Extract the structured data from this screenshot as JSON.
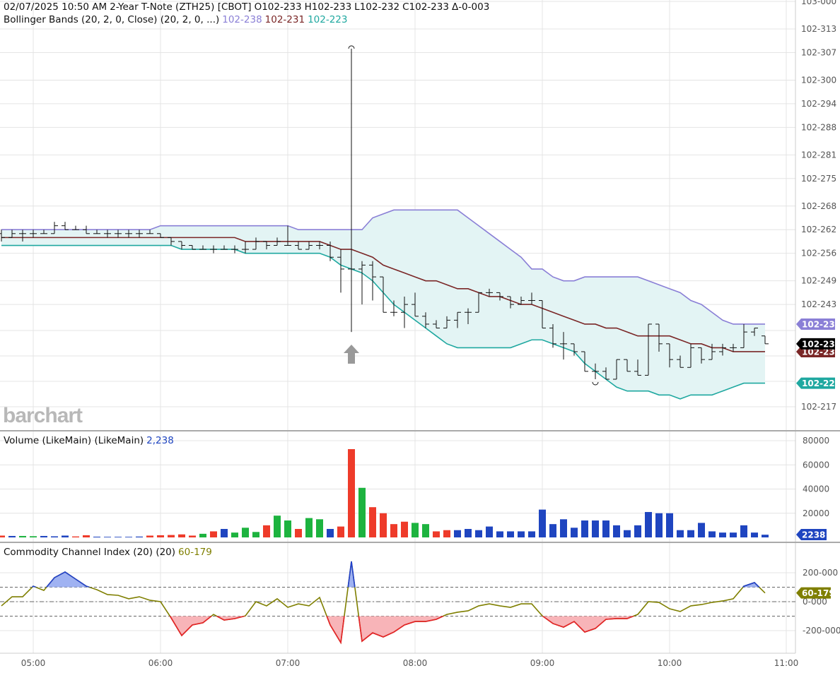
{
  "header": {
    "datetime": "02/07/2025 10:50 AM",
    "instrument": "2-Year T-Note (ZTH25) [CBOT]",
    "open": "O102-233",
    "high": "H102-233",
    "low": "L102-232",
    "close": "C102-233",
    "change": "Δ-0-003",
    "bb_label": "Bollinger Bands (20, 2, 0, Close)  (20, 2, 0, ...)",
    "bb_upper": "102-238",
    "bb_middle": "102-231",
    "bb_lower": "102-223"
  },
  "volume_header": {
    "label": "Volume (LikeMain)  (LikeMain)",
    "value": "2,238"
  },
  "cci_header": {
    "label": "Commodity Channel Index (20)  (20)",
    "value": "60-179"
  },
  "watermark": "barchart",
  "colors": {
    "bb_upper": "#8a7fd6",
    "bb_middle": "#7a2626",
    "bb_lower": "#1fa8a0",
    "bb_fill": "#e3f4f4",
    "vol_up": "#1db33f",
    "vol_down": "#ee3b2a",
    "vol_unch": "#1f45c0",
    "cci_line": "#7f7f00",
    "cci_over": "#2040d0",
    "cci_over_fill": "#9fb2f2",
    "cci_under": "#e8202a",
    "cci_under_fill": "#f8b4b8",
    "last_price": "#000000"
  },
  "chart_data": [
    {
      "type": "ohlc",
      "panel": "price",
      "bar_interval_min": 5,
      "first_bar": "04:45",
      "x_ticks": [
        "05:00",
        "06:00",
        "07:00",
        "08:00",
        "09:00",
        "10:00",
        "11:00"
      ],
      "y_ticks": [
        "103-000",
        "102-313",
        "102-307",
        "102-300",
        "102-294",
        "102-288",
        "102-281",
        "102-275",
        "102-268",
        "102-262",
        "102-256",
        "102-249",
        "102-243",
        "102-217"
      ],
      "ylim": [
        "102-217",
        "103-000"
      ],
      "last_price_tag": "102-233",
      "band_tags": {
        "upper": "102-238",
        "middle": "102-231",
        "lower": "102-223"
      },
      "bars": [
        "102-261 102-262 102-259 102-260",
        "102-260 102-262 102-260 102-261",
        "102-261 102-262 102-259 102-261",
        "102-261 102-262 102-260 102-261",
        "102-261 102-262 102-261 102-261",
        "102-261 102-264 102-261 102-263",
        "102-263 102-264 102-262 102-262",
        "102-262 102-263 102-262 102-262",
        "102-262 102-263 102-261 102-261",
        "102-261 102-262 102-261 102-261",
        "102-261 102-262 102-260 102-261",
        "102-261 102-262 102-260 102-261",
        "102-261 102-262 102-260 102-261",
        "102-261 102-262 102-260 102-261",
        "102-261 102-262 102-261 102-261",
        "102-261 102-261 102-260 102-260",
        "102-260 102-260 102-258 102-259",
        "102-259 102-259 102-257 102-258",
        "102-258 102-258 102-257 102-257",
        "102-257 102-258 102-257 102-257",
        "102-257 102-258 102-256 102-257",
        "102-257 102-258 102-257 102-257",
        "102-257 102-258 102-256 102-257",
        "102-257 102-259 102-256 102-257",
        "102-257 102-260 102-257 102-259",
        "102-259 102-259 102-257 102-258",
        "102-258 102-260 102-258 102-259",
        "102-258 102-263 102-258 102-258",
        "102-258 102-259 102-257 102-257",
        "102-257 102-259 102-257 102-258",
        "102-258 102-259 102-257 102-258",
        "102-258 102-259 102-254 102-255",
        "102-255 102-257 102-246 102-252",
        "102-252 102-308 102-236 102-252",
        "102-252 102-254 102-243 102-253",
        "102-253 102-254 102-244 102-250",
        "102-250 102-250 102-241 102-241",
        "102-241 102-244 102-240 102-241",
        "102-241 102-245 102-237 102-243",
        "102-243 102-246 102-240 102-240",
        "102-240 102-241 102-237 102-238",
        "102-238 102-239 102-237 102-237",
        "102-237 102-240 102-237 102-239",
        "102-239 102-241 102-237 102-241",
        "102-241 102-242 102-238 102-241",
        "102-241 102-246 102-241 102-246",
        "102-246 102-247 102-245 102-246",
        "102-246 102-246 102-244 102-245",
        "102-245 102-245 102-242 102-243",
        "102-243 102-245 102-243 102-244",
        "102-244 102-246 102-243 102-244",
        "102-244 102-244 102-237 102-237",
        "102-237 102-238 102-232 102-233",
        "102-233 102-236 102-229 102-233",
        "102-233 102-233 102-230 102-231",
        "102-231 102-231 102-226 102-226",
        "102-226 102-228 102-224 102-226",
        "102-226 102-227 102-224 102-224",
        "102-224 102-229 102-224 102-229",
        "102-229 102-229 102-226 102-226",
        "102-226 102-229 102-225 102-225",
        "102-225 102-238 102-225 102-238",
        "102-238 102-238 102-231 102-233",
        "102-233 102-233 102-227 102-229",
        "102-229 102-230 102-227 102-227",
        "102-227 102-233 102-227 102-232",
        "102-232 102-232 102-228 102-229",
        "102-229 102-233 102-229 102-231",
        "102-231 102-233 102-230 102-232",
        "102-232 102-233 102-231 102-232",
        "102-232 102-238 102-232 102-236",
        "102-236 102-237 102-235 102-237",
        "102-235 102-235 102-233 102-233"
      ],
      "bb_upper": [
        "102-262",
        "102-262",
        "102-262",
        "102-262",
        "102-262",
        "102-262",
        "102-262",
        "102-262",
        "102-262",
        "102-262",
        "102-262",
        "102-262",
        "102-262",
        "102-262",
        "102-262",
        "102-263",
        "102-263",
        "102-263",
        "102-263",
        "102-263",
        "102-263",
        "102-263",
        "102-263",
        "102-263",
        "102-263",
        "102-263",
        "102-263",
        "102-263",
        "102-262",
        "102-262",
        "102-262",
        "102-262",
        "102-262",
        "102-262",
        "102-262",
        "102-265",
        "102-266",
        "102-267",
        "102-267",
        "102-267",
        "102-267",
        "102-267",
        "102-267",
        "102-267",
        "102-265",
        "102-263",
        "102-261",
        "102-259",
        "102-257",
        "102-255",
        "102-252",
        "102-252",
        "102-250",
        "102-249",
        "102-249",
        "102-250",
        "102-250",
        "102-250",
        "102-250",
        "102-250",
        "102-250",
        "102-249",
        "102-248",
        "102-247",
        "102-246",
        "102-244",
        "102-243",
        "102-241",
        "102-239",
        "102-238",
        "102-238",
        "102-238",
        "102-238"
      ],
      "bb_middle": [
        "102-260",
        "102-260",
        "102-260",
        "102-260",
        "102-260",
        "102-260",
        "102-260",
        "102-260",
        "102-260",
        "102-260",
        "102-260",
        "102-260",
        "102-260",
        "102-260",
        "102-260",
        "102-260",
        "102-260",
        "102-260",
        "102-260",
        "102-260",
        "102-260",
        "102-260",
        "102-260",
        "102-259",
        "102-259",
        "102-259",
        "102-259",
        "102-259",
        "102-259",
        "102-259",
        "102-259",
        "102-258",
        "102-257",
        "102-257",
        "102-256",
        "102-255",
        "102-253",
        "102-252",
        "102-251",
        "102-250",
        "102-249",
        "102-249",
        "102-248",
        "102-247",
        "102-247",
        "102-246",
        "102-245",
        "102-245",
        "102-244",
        "102-243",
        "102-243",
        "102-242",
        "102-241",
        "102-240",
        "102-239",
        "102-238",
        "102-238",
        "102-237",
        "102-237",
        "102-236",
        "102-235",
        "102-235",
        "102-235",
        "102-235",
        "102-234",
        "102-233",
        "102-233",
        "102-232",
        "102-232",
        "102-231",
        "102-231",
        "102-231",
        "102-231"
      ],
      "bb_lower": [
        "102-258",
        "102-258",
        "102-258",
        "102-258",
        "102-258",
        "102-258",
        "102-258",
        "102-258",
        "102-258",
        "102-258",
        "102-258",
        "102-258",
        "102-258",
        "102-258",
        "102-258",
        "102-258",
        "102-258",
        "102-257",
        "102-257",
        "102-257",
        "102-257",
        "102-257",
        "102-257",
        "102-256",
        "102-256",
        "102-256",
        "102-256",
        "102-256",
        "102-256",
        "102-256",
        "102-256",
        "102-255",
        "102-253",
        "102-252",
        "102-251",
        "102-249",
        "102-246",
        "102-243",
        "102-241",
        "102-239",
        "102-237",
        "102-235",
        "102-233",
        "102-232",
        "102-232",
        "102-232",
        "102-232",
        "102-232",
        "102-232",
        "102-233",
        "102-234",
        "102-234",
        "102-233",
        "102-232",
        "102-231",
        "102-228",
        "102-226",
        "102-224",
        "102-222",
        "102-221",
        "102-221",
        "102-221",
        "102-220",
        "102-220",
        "102-219",
        "102-220",
        "102-220",
        "102-220",
        "102-221",
        "102-222",
        "102-223",
        "102-223",
        "102-223"
      ]
    },
    {
      "type": "bar",
      "panel": "volume",
      "y_ticks": [
        80000,
        60000,
        40000,
        20000
      ],
      "ylim": [
        0,
        80000
      ],
      "last_tag": "2238",
      "values": [
        1500,
        1200,
        1200,
        1000,
        1200,
        900,
        1500,
        800,
        1800,
        600,
        500,
        500,
        500,
        700,
        1500,
        1800,
        2000,
        2500,
        1500,
        3000,
        5000,
        7000,
        4000,
        8000,
        4500,
        10000,
        18000,
        14000,
        7000,
        16000,
        15000,
        7000,
        9000,
        73000,
        41000,
        25000,
        20000,
        11000,
        13000,
        12000,
        11000,
        5000,
        6000,
        6000,
        7000,
        6000,
        9000,
        5000,
        5000,
        5000,
        5000,
        23000,
        11000,
        15000,
        8000,
        14000,
        14000,
        14000,
        10000,
        6000,
        10000,
        21000,
        20000,
        20000,
        6000,
        6000,
        12000,
        5000,
        4000,
        4000,
        10000,
        4000,
        2238
      ],
      "direction": "dnuunnnddnnnnndddddudnuuuduuduunddudddduuddnnnnnnnnnnnnnnnnnnnnn"
    },
    {
      "type": "line",
      "panel": "cci",
      "y_ticks": [
        {
          "value": 200,
          "label": "200-000"
        },
        {
          "value": 0,
          "label": "0-000"
        },
        {
          "value": -200,
          "label": "-200-000"
        }
      ],
      "ylim": [
        -300,
        300
      ],
      "levels": [
        100,
        0,
        -100
      ],
      "last_tag": "60-179",
      "values": [
        -29,
        34,
        34,
        107,
        78,
        166,
        205,
        156,
        107,
        83,
        49,
        44,
        20,
        34,
        10,
        0,
        -112,
        -234,
        -161,
        -146,
        -88,
        -127,
        -117,
        -98,
        0,
        -29,
        20,
        -39,
        -15,
        -29,
        29,
        -161,
        -283,
        278,
        -273,
        -215,
        -244,
        -210,
        -161,
        -137,
        -137,
        -122,
        -88,
        -73,
        -63,
        -29,
        -15,
        -29,
        -39,
        -15,
        -15,
        -98,
        -151,
        -176,
        -137,
        -210,
        -185,
        -122,
        -117,
        -117,
        -88,
        0,
        -5,
        -49,
        -68,
        -29,
        -20,
        -5,
        5,
        20,
        107,
        132,
        60.179
      ]
    }
  ]
}
